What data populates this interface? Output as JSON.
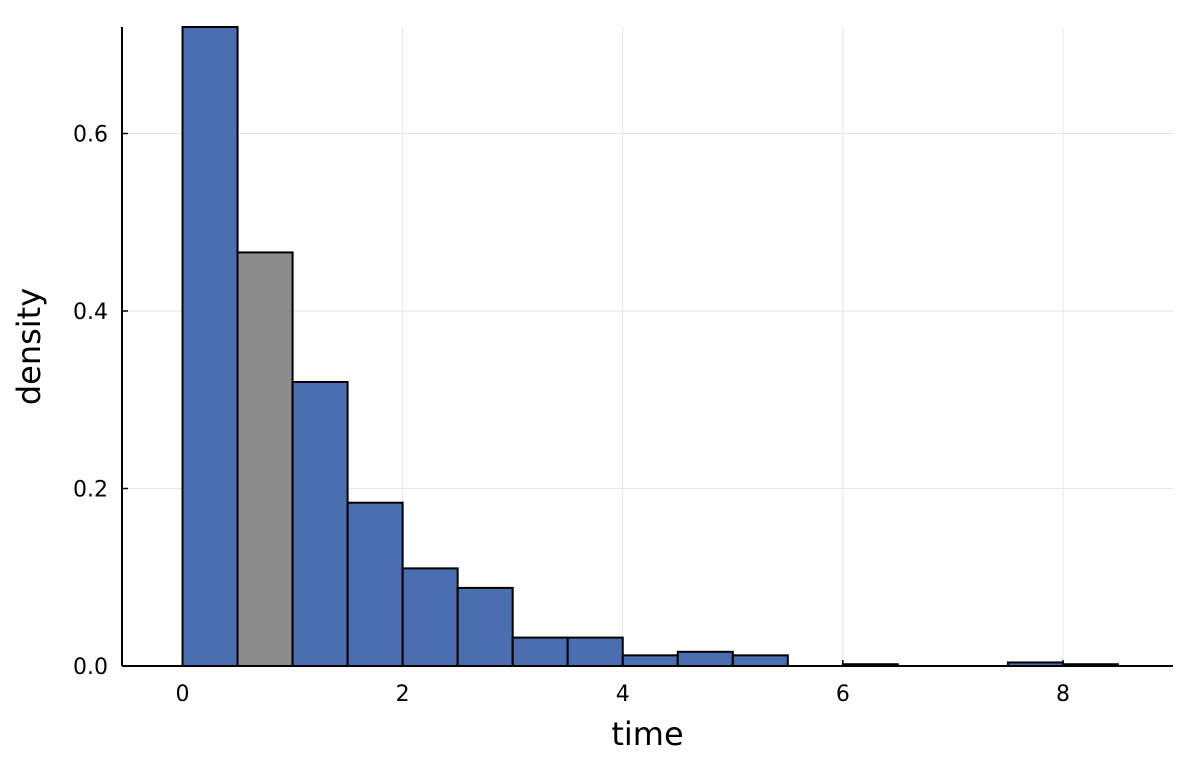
{
  "chart_data": {
    "type": "bar",
    "xlabel": "time",
    "ylabel": "density",
    "xlim": [
      -0.55,
      9.0
    ],
    "ylim": [
      0,
      0.72
    ],
    "x_ticks": [
      0,
      2,
      4,
      6,
      8
    ],
    "x_tick_labels": [
      "0",
      "2",
      "4",
      "6",
      "8"
    ],
    "y_ticks": [
      0.0,
      0.2,
      0.4,
      0.6
    ],
    "y_tick_labels": [
      "0.0",
      "0.2",
      "0.4",
      "0.6"
    ],
    "grid": true,
    "bin_width": 0.5,
    "bins": [
      {
        "start": 0.0,
        "end": 0.5,
        "density": 0.72
      },
      {
        "start": 0.5,
        "end": 1.0,
        "density": 0.466,
        "highlighted": true
      },
      {
        "start": 1.0,
        "end": 1.5,
        "density": 0.32
      },
      {
        "start": 1.5,
        "end": 2.0,
        "density": 0.184
      },
      {
        "start": 2.0,
        "end": 2.5,
        "density": 0.11
      },
      {
        "start": 2.5,
        "end": 3.0,
        "density": 0.088
      },
      {
        "start": 3.0,
        "end": 3.5,
        "density": 0.032
      },
      {
        "start": 3.5,
        "end": 4.0,
        "density": 0.032
      },
      {
        "start": 4.0,
        "end": 4.5,
        "density": 0.012
      },
      {
        "start": 4.5,
        "end": 5.0,
        "density": 0.016
      },
      {
        "start": 5.0,
        "end": 5.5,
        "density": 0.012
      },
      {
        "start": 5.5,
        "end": 6.0,
        "density": 0.0
      },
      {
        "start": 6.0,
        "end": 6.5,
        "density": 0.002
      },
      {
        "start": 6.5,
        "end": 7.0,
        "density": 0.0
      },
      {
        "start": 7.0,
        "end": 7.5,
        "density": 0.0
      },
      {
        "start": 7.5,
        "end": 8.0,
        "density": 0.004
      },
      {
        "start": 8.0,
        "end": 8.5,
        "density": 0.002
      }
    ],
    "colors": {
      "bar": "#4a6eb0",
      "highlight": "#8c8c8c",
      "edge": "#000000",
      "grid": "#e6e6e6"
    }
  }
}
